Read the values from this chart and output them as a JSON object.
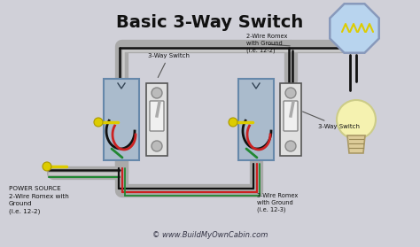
{
  "title": "Basic 3-Way Switch",
  "bg_color": "#d0d0d8",
  "wire_colors": {
    "black": "#111111",
    "white": "#cccccc",
    "red": "#cc2222",
    "green": "#228833",
    "yellow": "#ddcc00",
    "gray": "#aaaaaa",
    "dark_gray": "#888888"
  },
  "labels": {
    "title": "Basic 3-Way Switch",
    "power_source": "POWER SOURCE\n2-Wire Romex with\nGround\n(i.e. 12-2)",
    "romex_top": "2-Wire Romex\nwith Ground\n(i.e. 12-2)",
    "romex_bottom": "3-Wire Romex\nwith Ground\n(i.e. 12-3)",
    "switch1_label": "3-Way Switch",
    "switch2_label": "3-Way Switch",
    "website": "© www.BuildMyOwnCabin.com"
  }
}
